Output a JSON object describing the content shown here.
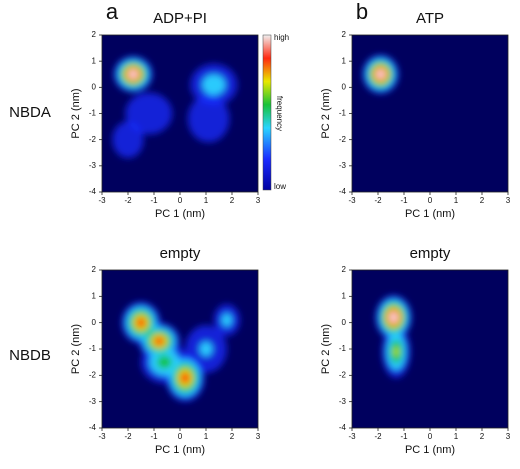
{
  "row_labels": [
    "NBDA",
    "NBDB"
  ],
  "chart_data": [
    {
      "type": "heatmap",
      "label": "a",
      "title": "ADP+PI",
      "xlabel": "PC 1 (nm)",
      "ylabel": "PC 2 (nm)",
      "xlim": [
        -3,
        3
      ],
      "ylim": [
        -4,
        2
      ],
      "xticks": [
        -3,
        -2,
        -1,
        0,
        1,
        2,
        3
      ],
      "yticks": [
        -4,
        -3,
        -2,
        -1,
        0,
        1,
        2
      ],
      "background": "#00005e",
      "colorbar": {
        "high": "high",
        "low": "low",
        "label": "frequency"
      },
      "peaks": [
        {
          "x": -1.8,
          "y": 0.5,
          "rx": 0.75,
          "ry": 0.7,
          "level": 1
        },
        {
          "x": 1.3,
          "y": 0.1,
          "rx": 0.9,
          "ry": 0.8,
          "level": 0.35
        },
        {
          "x": 1.1,
          "y": -1.2,
          "rx": 0.8,
          "ry": 0.9,
          "level": 0.15
        },
        {
          "x": -1.2,
          "y": -1.0,
          "rx": 0.9,
          "ry": 0.8,
          "level": 0.1
        },
        {
          "x": -2.0,
          "y": -2.0,
          "rx": 0.6,
          "ry": 0.7,
          "level": 0.1
        }
      ]
    },
    {
      "type": "heatmap",
      "label": "b",
      "title": "ATP",
      "xlabel": "PC 1 (nm)",
      "ylabel": "PC 2 (nm)",
      "xlim": [
        -3,
        3
      ],
      "ylim": [
        -4,
        2
      ],
      "xticks": [
        -3,
        -2,
        -1,
        0,
        1,
        2,
        3
      ],
      "yticks": [
        -4,
        -3,
        -2,
        -1,
        0,
        1,
        2
      ],
      "background": "#00005e",
      "peaks": [
        {
          "x": -1.9,
          "y": 0.5,
          "rx": 0.7,
          "ry": 0.75,
          "level": 1
        }
      ]
    },
    {
      "type": "heatmap",
      "title": "empty",
      "xlabel": "PC 1 (nm)",
      "ylabel": "PC 2 (nm)",
      "xlim": [
        -3,
        3
      ],
      "ylim": [
        -4,
        2
      ],
      "xticks": [
        -3,
        -2,
        -1,
        0,
        1,
        2,
        3
      ],
      "yticks": [
        -4,
        -3,
        -2,
        -1,
        0,
        1,
        2
      ],
      "background": "#00005e",
      "peaks": [
        {
          "x": -1.5,
          "y": 0.0,
          "rx": 0.75,
          "ry": 0.8,
          "level": 0.85
        },
        {
          "x": -0.8,
          "y": -0.7,
          "rx": 0.8,
          "ry": 0.7,
          "level": 0.85
        },
        {
          "x": -0.6,
          "y": -1.5,
          "rx": 0.9,
          "ry": 0.8,
          "level": 0.5
        },
        {
          "x": 0.2,
          "y": -2.1,
          "rx": 0.75,
          "ry": 0.9,
          "level": 0.85
        },
        {
          "x": 1.0,
          "y": -1.0,
          "rx": 0.8,
          "ry": 0.9,
          "level": 0.25
        },
        {
          "x": 1.8,
          "y": 0.1,
          "rx": 0.5,
          "ry": 0.6,
          "level": 0.3
        }
      ]
    },
    {
      "type": "heatmap",
      "title": "empty",
      "xlabel": "PC 1 (nm)",
      "ylabel": "PC 2 (nm)",
      "xlim": [
        -3,
        3
      ],
      "ylim": [
        -4,
        2
      ],
      "xticks": [
        -3,
        -2,
        -1,
        0,
        1,
        2,
        3
      ],
      "yticks": [
        -4,
        -3,
        -2,
        -1,
        0,
        1,
        2
      ],
      "background": "#00005e",
      "peaks": [
        {
          "x": -1.4,
          "y": 0.2,
          "rx": 0.7,
          "ry": 0.85,
          "level": 1
        },
        {
          "x": -1.3,
          "y": -1.1,
          "rx": 0.55,
          "ry": 1.0,
          "level": 0.6
        }
      ]
    }
  ]
}
